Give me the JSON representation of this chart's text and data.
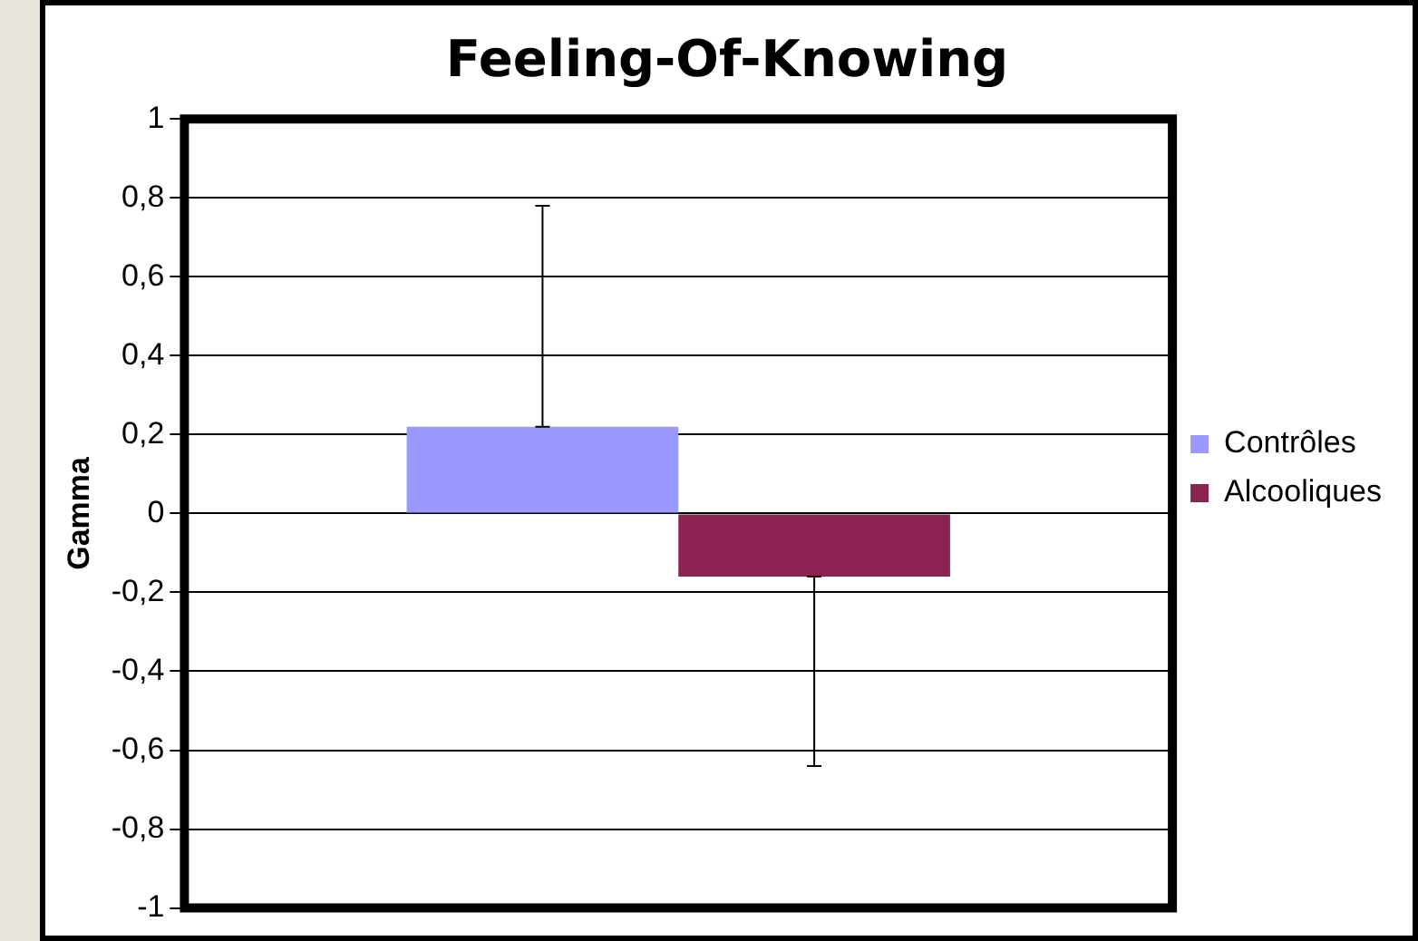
{
  "chart_data": {
    "type": "bar",
    "title": "Feeling-Of-Knowing",
    "ylabel": "Gamma",
    "categories": [
      null
    ],
    "series": [
      {
        "name": "Contrôles",
        "color": "#9999ff",
        "values": [
          0.22
        ],
        "errors": [
          [
            0.22,
            0.78
          ]
        ]
      },
      {
        "name": "Alcooliques",
        "color": "#8b2252",
        "values": [
          -0.16
        ],
        "errors": [
          [
            -0.64,
            -0.16
          ]
        ]
      }
    ],
    "ylim": [
      -1,
      1
    ],
    "yticks": [
      {
        "value": -1,
        "label": "-1"
      },
      {
        "value": -0.8,
        "label": "-0,8"
      },
      {
        "value": -0.6,
        "label": "-0,6"
      },
      {
        "value": -0.4,
        "label": "-0,4"
      },
      {
        "value": -0.2,
        "label": "-0,2"
      },
      0,
      {
        "value": 0.2,
        "label": "0,2"
      },
      {
        "value": 0.4,
        "label": "0,4"
      },
      {
        "value": 0.6,
        "label": "0,6"
      },
      {
        "value": 0.8,
        "label": "0,8"
      },
      1
    ],
    "grid": "y",
    "legend": "right",
    "tick_labels": "y"
  }
}
